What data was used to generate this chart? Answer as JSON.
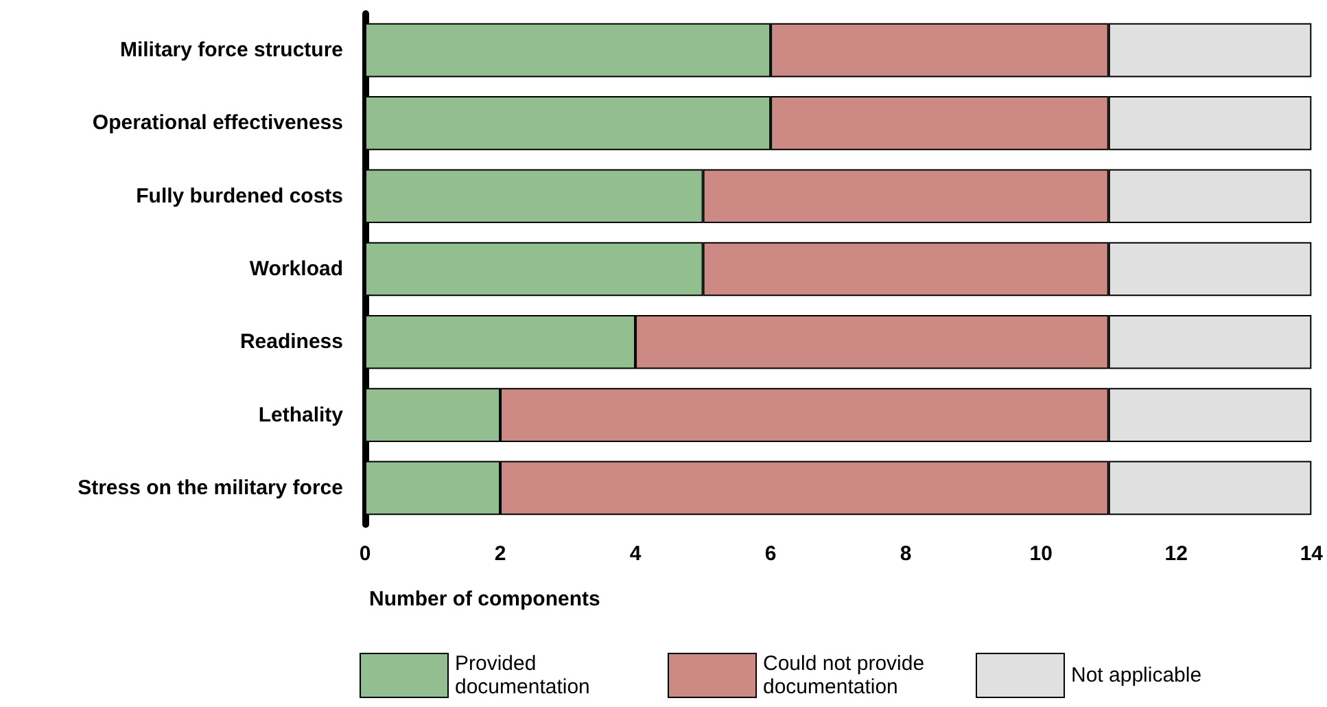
{
  "chart_data": {
    "type": "bar",
    "orientation": "horizontal",
    "stacked": true,
    "xlabel": "Number of components",
    "categories": [
      "Military force structure",
      "Operational effectiveness",
      "Fully burdened costs",
      "Workload",
      "Readiness",
      "Lethality",
      "Stress on the military force"
    ],
    "series": [
      {
        "name": "Provided documentation",
        "color": "#93bf90",
        "values": [
          6,
          6,
          5,
          5,
          4,
          2,
          2
        ]
      },
      {
        "name": "Could not provide documentation",
        "color": "#cd8a84",
        "values": [
          5,
          5,
          6,
          6,
          7,
          9,
          9
        ]
      },
      {
        "name": "Not applicable",
        "color": "#e0e0e0",
        "values": [
          3,
          3,
          3,
          3,
          3,
          3,
          3
        ]
      }
    ],
    "xlim": [
      0,
      14
    ],
    "xticks": [
      0,
      2,
      4,
      6,
      8,
      10,
      12,
      14
    ],
    "grid": false,
    "legend": "bottom"
  }
}
